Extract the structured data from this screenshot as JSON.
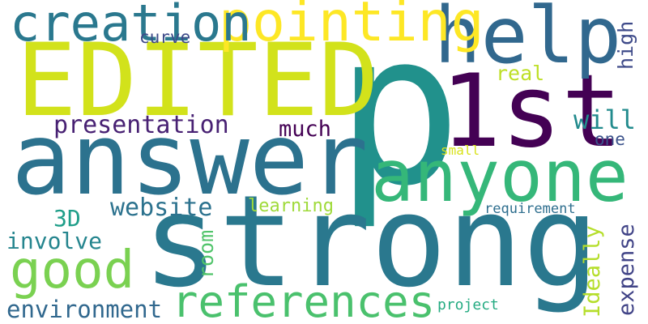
{
  "words": [
    {
      "key": "p",
      "text": "p",
      "color": "#21918c"
    },
    {
      "key": "strong",
      "text": "strong",
      "color": "#2a788e"
    },
    {
      "key": "answer",
      "text": "answer",
      "color": "#2c728e"
    },
    {
      "key": "edited",
      "text": "EDITED",
      "color": "#d2e21b"
    },
    {
      "key": "1st",
      "text": "1st",
      "color": "#440154"
    },
    {
      "key": "anyone",
      "text": "anyone",
      "color": "#35b779"
    },
    {
      "key": "help",
      "text": "help",
      "color": "#31688e"
    },
    {
      "key": "pointing",
      "text": "pointing",
      "color": "#fde725"
    },
    {
      "key": "creation",
      "text": "creation",
      "color": "#2a788e"
    },
    {
      "key": "references",
      "text": "references",
      "color": "#4ac16d"
    },
    {
      "key": "good",
      "text": "good",
      "color": "#7ad151"
    },
    {
      "key": "presentation",
      "text": "presentation",
      "color": "#482173"
    },
    {
      "key": "website",
      "text": "website",
      "color": "#2c728e"
    },
    {
      "key": "environment",
      "text": "environment",
      "color": "#31688e"
    },
    {
      "key": "involve",
      "text": "involve",
      "color": "#25858e"
    },
    {
      "key": "3d",
      "text": "3D",
      "color": "#1f9e89"
    },
    {
      "key": "much",
      "text": "much",
      "color": "#440154"
    },
    {
      "key": "will",
      "text": "will",
      "color": "#228b8d"
    },
    {
      "key": "real",
      "text": "real",
      "color": "#bddf26"
    },
    {
      "key": "high",
      "text": "high",
      "color": "#3e4a89"
    },
    {
      "key": "curve",
      "text": "curve",
      "color": "#3e4a89"
    },
    {
      "key": "one",
      "text": "one",
      "color": "#3b528b"
    },
    {
      "key": "small",
      "text": "small",
      "color": "#d8e219"
    },
    {
      "key": "learning",
      "text": "learning",
      "color": "#9fda3a"
    },
    {
      "key": "requirement",
      "text": "requirement",
      "color": "#2e6e8e"
    },
    {
      "key": "room",
      "text": "room",
      "color": "#50c46a"
    },
    {
      "key": "ideally",
      "text": "Ideally",
      "color": "#b5de2b"
    },
    {
      "key": "expense",
      "text": "expense",
      "color": "#414487"
    },
    {
      "key": "project",
      "text": "project",
      "color": "#25ab82"
    }
  ]
}
